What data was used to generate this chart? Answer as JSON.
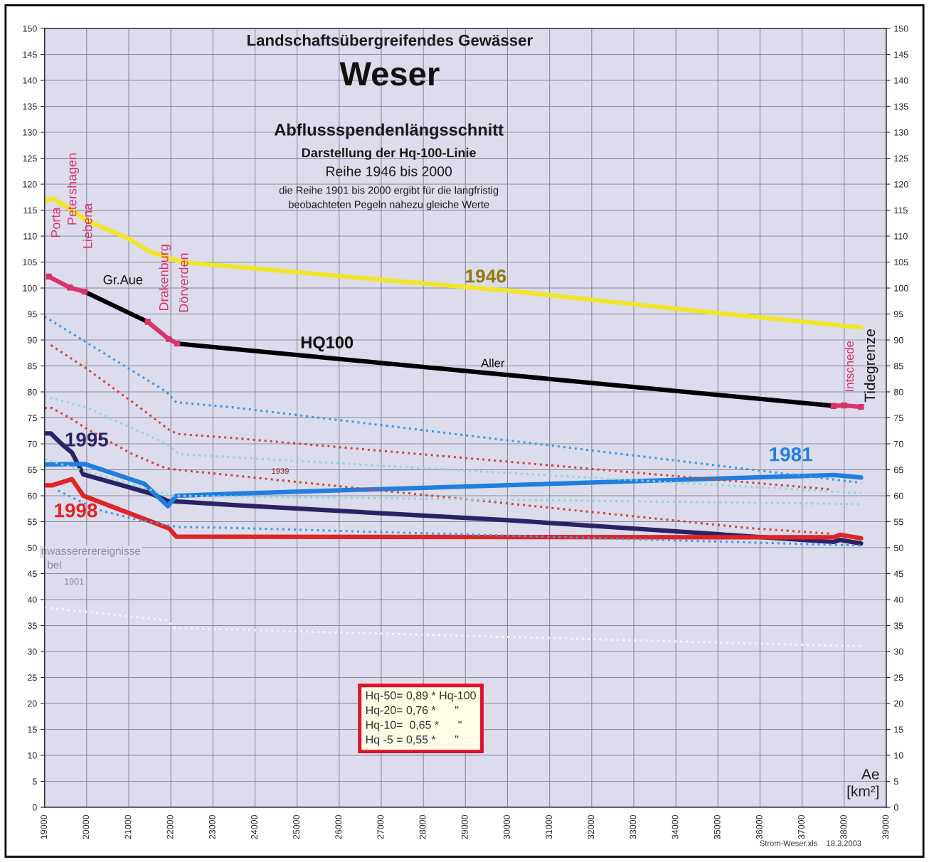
{
  "chart_data": {
    "type": "line",
    "title": "Landschaftsübergreifendes Gewässer",
    "subtitle": "Weser",
    "xlabel": "Ae\n[km²]",
    "xlim": [
      19000,
      39000
    ],
    "xticks": [
      19000,
      20000,
      21000,
      22000,
      23000,
      24000,
      25000,
      26000,
      27000,
      28000,
      29000,
      30000,
      31000,
      32000,
      33000,
      34000,
      35000,
      36000,
      37000,
      38000,
      39000
    ],
    "ylim": [
      0,
      150
    ],
    "yticks": [
      0,
      5,
      10,
      15,
      20,
      25,
      30,
      35,
      40,
      45,
      50,
      55,
      60,
      65,
      70,
      75,
      80,
      85,
      90,
      95,
      100,
      105,
      110,
      115,
      120,
      125,
      130,
      135,
      140,
      145,
      150
    ],
    "y2lim": [
      0,
      150
    ],
    "y2ticks": [
      0,
      5,
      10,
      15,
      20,
      25,
      30,
      35,
      40,
      45,
      50,
      55,
      60,
      65,
      70,
      75,
      80,
      85,
      90,
      95,
      100,
      105,
      110,
      115,
      120,
      125,
      130,
      135,
      140,
      145,
      150
    ],
    "grid": true,
    "series": [
      {
        "color": "#f2e52a",
        "x": [
          19000,
          19200,
          19600,
          20000,
          21000,
          21500,
          22000,
          22300,
          26000,
          30000,
          34000,
          38400
        ],
        "values": [
          116.8,
          117.2,
          115.3,
          113,
          109.5,
          107,
          105.7,
          105,
          102.3,
          99.5,
          96,
          92.4
        ]
      },
      {
        "color": "#d8346b",
        "marker": "square",
        "x": [
          19100,
          19600,
          19950
        ],
        "values": [
          102.2,
          100.1,
          99.3
        ]
      },
      {
        "color": "#000000",
        "x": [
          19950,
          21450
        ],
        "values": [
          99.3,
          93.5
        ]
      },
      {
        "color": "#d8346b",
        "marker": "square",
        "x": [
          21450,
          21950,
          22150
        ],
        "values": [
          93.5,
          90.2,
          89.3
        ]
      },
      {
        "color": "#000000",
        "x": [
          22150,
          37750
        ],
        "values": [
          89.3,
          77.3
        ]
      },
      {
        "color": "#d8346b",
        "marker": "square",
        "x": [
          37750,
          38000,
          38400
        ],
        "values": [
          77.3,
          77.4,
          77.1
        ]
      },
      {
        "color": "#2a2266",
        "x": [
          19000,
          19150,
          19400,
          19650,
          19920,
          21500,
          21930,
          23500,
          30000,
          37750,
          37900,
          38400
        ],
        "values": [
          72,
          72,
          70,
          68.3,
          64.1,
          60.5,
          59,
          58.2,
          55.3,
          51.1,
          51.5,
          50.8
        ]
      },
      {
        "color": "#1f7fe0",
        "x": [
          19000,
          19960,
          21370,
          21930,
          22130,
          23500,
          37770,
          38400
        ],
        "values": [
          66,
          66.1,
          62.3,
          58,
          60,
          60.4,
          64,
          63.5
        ]
      },
      {
        "color": "#e02424",
        "x": [
          19000,
          19170,
          19650,
          19920,
          21960,
          22130,
          37750,
          37900,
          38400
        ],
        "values": [
          62,
          62,
          63.2,
          60,
          53.7,
          52.1,
          52,
          52.5,
          51.8
        ]
      },
      {
        "color": "#3a9be8",
        "line_style": "dotted",
        "x": [
          19000,
          19960,
          21900,
          22130,
          23500,
          38400
        ],
        "values": [
          94.5,
          89.7,
          80,
          78,
          77,
          62.5
        ]
      },
      {
        "color": "#d0463a",
        "line_style": "dotted",
        "x": [
          19150,
          19960,
          21030,
          21960,
          22160,
          23500,
          37700
        ],
        "values": [
          89,
          84.7,
          78.4,
          72.7,
          71.9,
          71.1,
          61.2
        ]
      },
      {
        "color": "#d0463a",
        "line_style": "dotted",
        "x": [
          19000,
          19170,
          19620,
          19960,
          21090,
          21880,
          22160,
          23500,
          35700,
          37650
        ],
        "values": [
          76.9,
          76.9,
          74.9,
          73.1,
          68,
          65.3,
          65,
          63.9,
          53.8,
          52.7
        ]
      },
      {
        "color": "#3a9be8",
        "line_style": "dotted",
        "x": [
          19320,
          19900,
          20360,
          21150,
          21930,
          22160,
          23500,
          38400
        ],
        "values": [
          61,
          58.7,
          57.1,
          55.5,
          54.3,
          54,
          53.8,
          50.4
        ]
      },
      {
        "color": "#8fd6d6",
        "line_style": "dotted",
        "x": [
          19000,
          20000,
          21900,
          22200,
          38400
        ],
        "values": [
          79.2,
          77,
          70,
          68,
          60.5
        ]
      },
      {
        "color": "#8fd6d6",
        "line_style": "dotted",
        "x": [
          19000,
          22000,
          38400
        ],
        "values": [
          67,
          60,
          58.4
        ]
      },
      {
        "color": "#f4f4fa",
        "line_style": "dotted",
        "x": [
          19000,
          21900,
          22100,
          38400
        ],
        "values": [
          38.5,
          36,
          34.5,
          31
        ]
      }
    ],
    "annotations": [
      "Porta",
      "Petershagen",
      "Liebena",
      "Drakenburg",
      "Dörverden",
      "Intschede",
      "Tidegrenze",
      "Gr.Aue",
      "HQ100",
      "Aller",
      "1946",
      "1995",
      "1998",
      "1981",
      "1939",
      "1901",
      "Abflussspendenlängsschnitt",
      "Darstellung der Hq-100-Linie",
      "Reihe 1946 bis 2000",
      "die Reihe 1901 bis 2000 ergibt für die langfristig\nbeobachteten Pegeln nahezu gleiche Werte",
      "Hq-50= 0,89 * Hq-100\nHq-20= 0,76 *      \"\nHq-10=  0,65 *      \"\nHq -5 = 0,55 *      \"",
      "Strom-Weser.xls    18.3.2003",
      "nwassererereignisse",
      "bel"
    ]
  }
}
